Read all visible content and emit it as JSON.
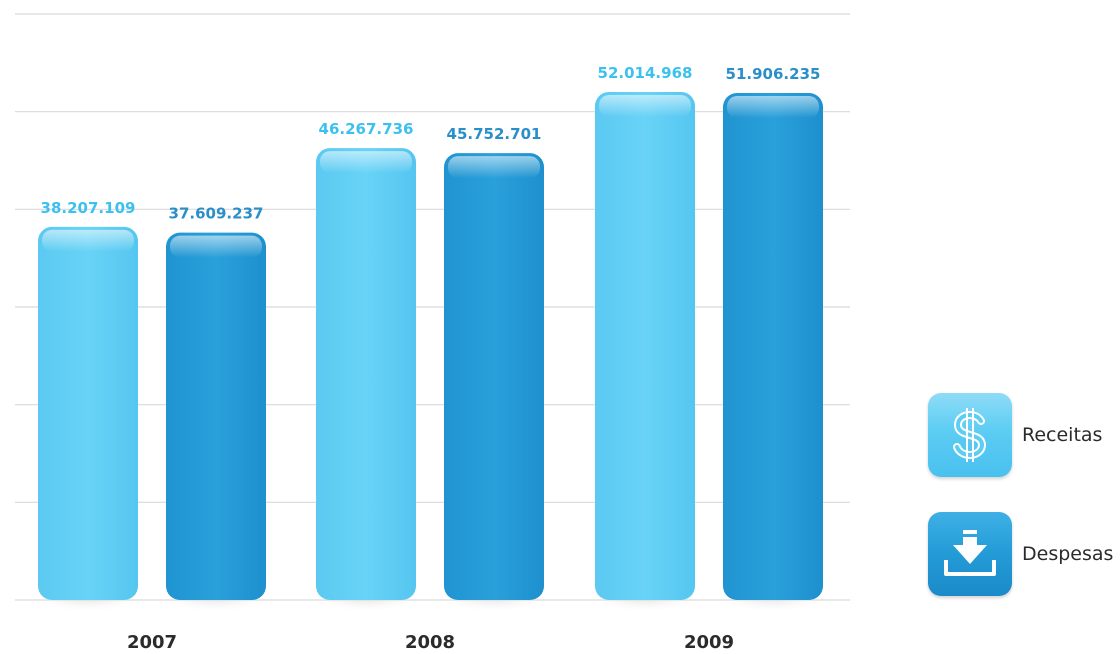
{
  "chart_data": {
    "type": "bar",
    "categories": [
      "2007",
      "2008",
      "2009"
    ],
    "series": [
      {
        "name": "Receitas",
        "values": [
          38207109,
          46267736,
          52014968
        ],
        "labels": [
          "38.207.109",
          "46.267.736",
          "52.014.968"
        ],
        "color": "#5ccdf3"
      },
      {
        "name": "Despesas",
        "values": [
          37609237,
          45752701,
          51906235
        ],
        "labels": [
          "37.609.237",
          "45.752.701",
          "51.906.235"
        ],
        "color": "#239bd6"
      }
    ],
    "ylim": [
      0,
      60000000
    ],
    "grid": true,
    "legend_position": "right"
  },
  "legend": {
    "items": [
      {
        "label": "Receitas",
        "icon": "dollar-sign-icon",
        "color": "#5ccdf3"
      },
      {
        "label": "Despesas",
        "icon": "download-tray-icon",
        "color": "#239bd6"
      }
    ]
  },
  "colors": {
    "label_receitas": "#3cc1ef",
    "label_despesas": "#2a8fc9",
    "axis_text": "#2b2b2b",
    "grid": "#d9d9d9"
  }
}
